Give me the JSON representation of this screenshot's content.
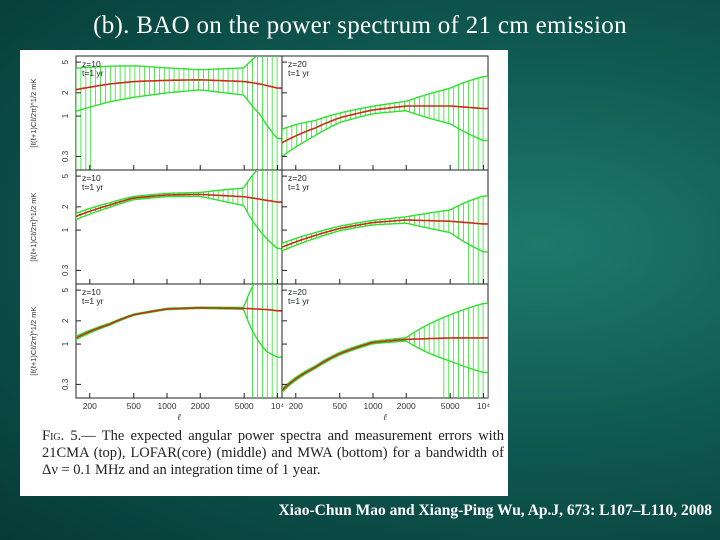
{
  "slide": {
    "title": "(b). BAO on the power spectrum of 21 cm emission",
    "citation": "Xiao-Chun Mao and Xiang-Ping Wu, Ap.J, 673: L107–L110, 2008",
    "background_color": "#0f5a52"
  },
  "figure": {
    "caption_label": "Fig. 5.—",
    "caption_text": "The expected angular power spectra and measurement errors with 21CMA (top), LOFAR(core) (middle) and MWA (bottom) for a bandwidth of Δν = 0.1 MHz and an integration time of 1 year."
  },
  "chart_data": {
    "type": "line",
    "layout": "3x2 grid of panels",
    "rows": [
      "21CMA",
      "LOFAR(core)",
      "MWA"
    ],
    "columns": [
      "z=10",
      "z=20"
    ],
    "xlabel": "ℓ",
    "ylabel": "[ℓ(ℓ+1)Cℓ/2π]^1/2 mK",
    "x_scale": "log",
    "y_scale": "log",
    "xlim": [
      150,
      11000
    ],
    "ylim": [
      0.2,
      6
    ],
    "x_ticks": [
      200,
      500,
      1000,
      2000,
      5000,
      10000
    ],
    "x_tick_labels": [
      "200",
      "500",
      "1000",
      "2000",
      "5000",
      "10⁴"
    ],
    "y_ticks": [
      0.3,
      1,
      2,
      5
    ],
    "y_tick_labels": [
      "0.3",
      "1",
      "2",
      "5"
    ],
    "series_colors": {
      "model": "#cc2a1a",
      "errors": "#2ee02e"
    },
    "panels": [
      {
        "label_z": "z=10",
        "label_t": "t=1 yr",
        "model": {
          "x": [
            150,
            300,
            500,
            1000,
            2000,
            5000,
            7000,
            10000
          ],
          "y": [
            2.2,
            2.6,
            2.8,
            2.9,
            2.95,
            2.8,
            2.6,
            2.3
          ]
        },
        "error_rel": [
          0.9,
          0.7,
          0.6,
          0.45,
          0.35,
          0.5,
          1.5,
          3.5
        ]
      },
      {
        "label_z": "z=20",
        "label_t": "t=1 yr",
        "model": {
          "x": [
            150,
            300,
            500,
            1000,
            2000,
            5000,
            10000
          ],
          "y": [
            0.45,
            0.7,
            0.95,
            1.2,
            1.35,
            1.35,
            1.25
          ]
        },
        "error_rel": [
          0.5,
          0.25,
          0.15,
          0.12,
          0.15,
          0.7,
          1.6
        ]
      },
      {
        "label_z": "z=10",
        "label_t": "t=1 yr",
        "model": {
          "x": [
            150,
            300,
            500,
            1000,
            2000,
            5000,
            10000
          ],
          "y": [
            1.5,
            2.1,
            2.6,
            2.85,
            2.9,
            2.7,
            2.3
          ]
        },
        "error_rel": [
          0.1,
          0.07,
          0.05,
          0.05,
          0.06,
          0.3,
          3.0
        ]
      },
      {
        "label_z": "z=20",
        "label_t": "t=1 yr",
        "model": {
          "x": [
            150,
            300,
            500,
            1000,
            2000,
            5000,
            10000
          ],
          "y": [
            0.6,
            0.85,
            1.05,
            1.25,
            1.35,
            1.3,
            1.2
          ]
        },
        "error_rel": [
          0.12,
          0.09,
          0.07,
          0.07,
          0.1,
          0.4,
          1.3
        ]
      },
      {
        "label_z": "z=10",
        "label_t": "t=1 yr",
        "model": {
          "x": [
            150,
            300,
            500,
            1000,
            2000,
            5000,
            8000,
            10000
          ],
          "y": [
            1.2,
            1.8,
            2.4,
            2.85,
            2.95,
            2.9,
            2.8,
            2.7
          ]
        },
        "error_rel": [
          0.05,
          0.03,
          0.02,
          0.02,
          0.02,
          0.03,
          2.5,
          3.0
        ]
      },
      {
        "label_z": "z=20",
        "label_t": "t=1 yr",
        "model": {
          "x": [
            150,
            300,
            500,
            1000,
            2000,
            5000,
            10000
          ],
          "y": [
            0.25,
            0.5,
            0.75,
            1.05,
            1.15,
            1.2,
            1.2
          ]
        },
        "error_rel": [
          0.05,
          0.04,
          0.04,
          0.04,
          0.05,
          1.0,
          1.8
        ]
      }
    ]
  }
}
